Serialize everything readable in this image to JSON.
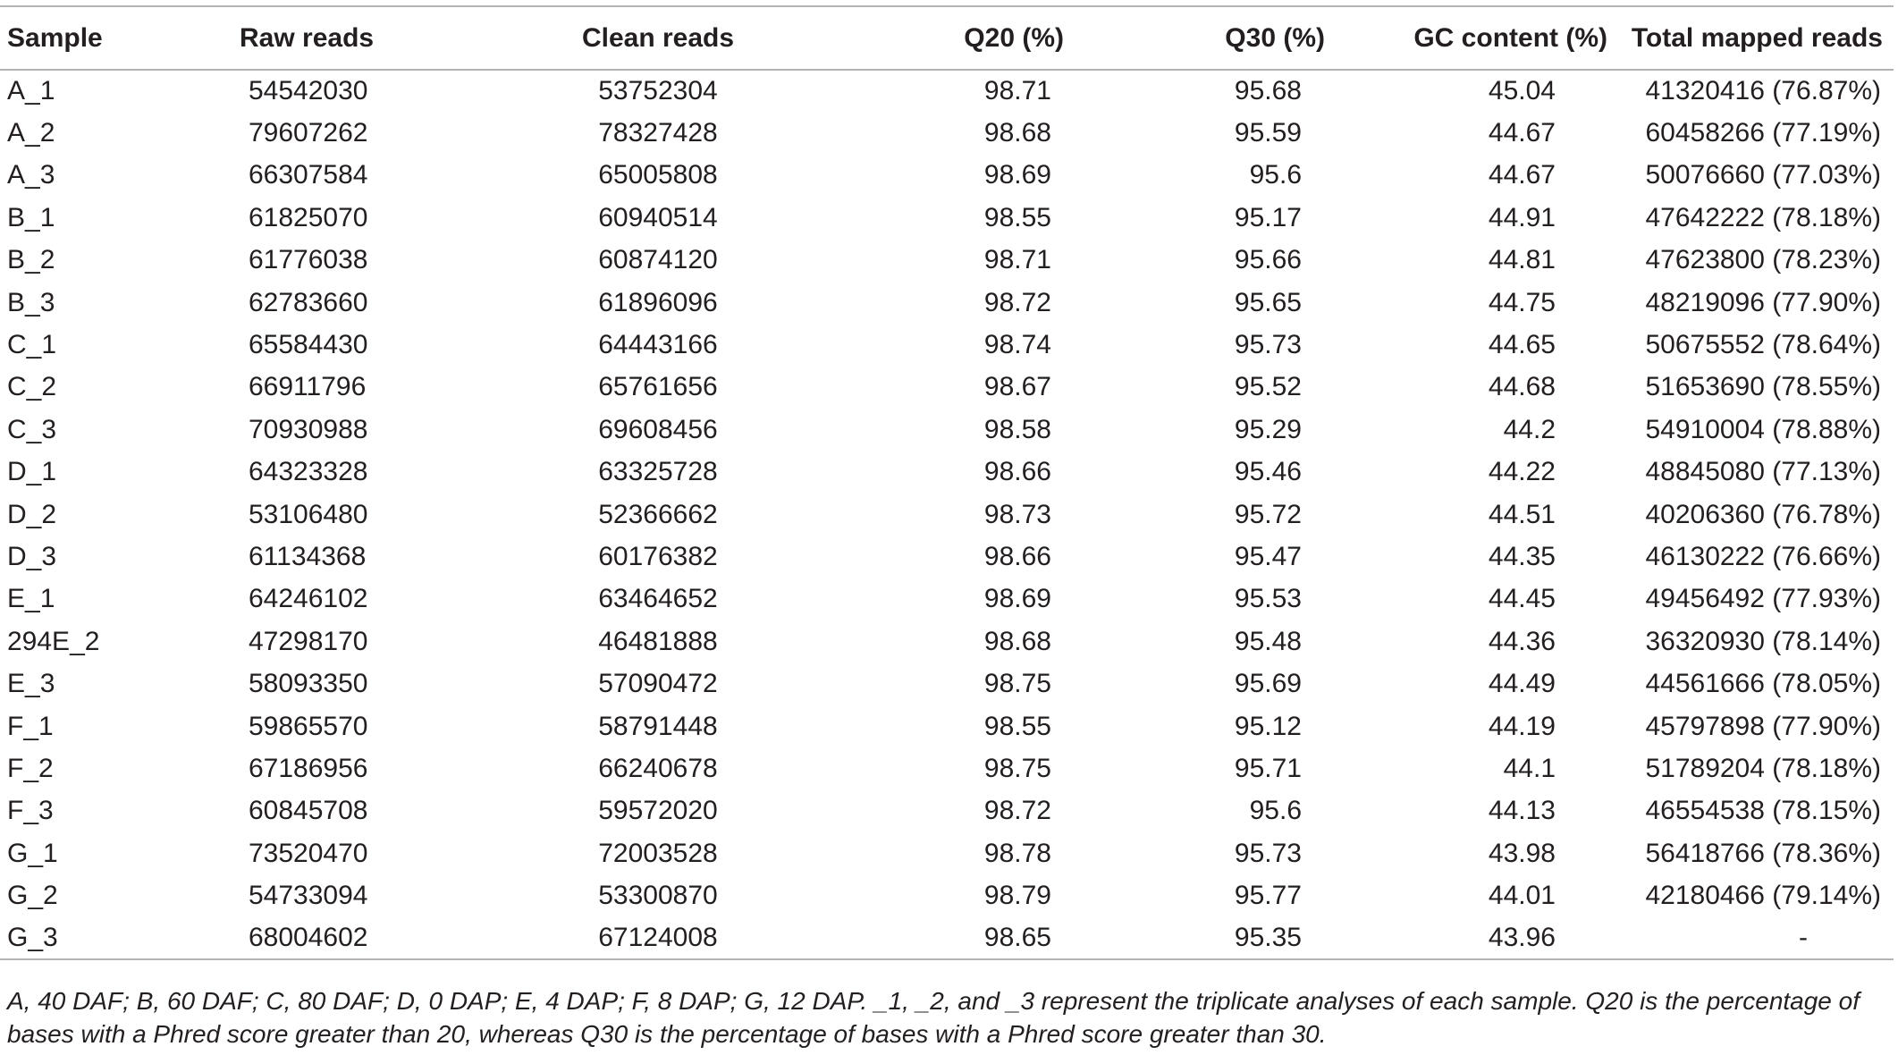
{
  "table": {
    "headers": [
      "Sample",
      "Raw reads",
      "Clean reads",
      "Q20 (%)",
      "Q30 (%)",
      "GC content (%)",
      "Total mapped reads"
    ],
    "rows": [
      [
        "A_1",
        "54542030",
        "53752304",
        "98.71",
        "95.68",
        "45.04",
        "41320416 (76.87%)"
      ],
      [
        "A_2",
        "79607262",
        "78327428",
        "98.68",
        "95.59",
        "44.67",
        "60458266 (77.19%)"
      ],
      [
        "A_3",
        "66307584",
        "65005808",
        "98.69",
        "95.6",
        "44.67",
        "50076660 (77.03%)"
      ],
      [
        "B_1",
        "61825070",
        "60940514",
        "98.55",
        "95.17",
        "44.91",
        "47642222 (78.18%)"
      ],
      [
        "B_2",
        "61776038",
        "60874120",
        "98.71",
        "95.66",
        "44.81",
        "47623800 (78.23%)"
      ],
      [
        "B_3",
        "62783660",
        "61896096",
        "98.72",
        "95.65",
        "44.75",
        "48219096 (77.90%)"
      ],
      [
        "C_1",
        "65584430",
        "64443166",
        "98.74",
        "95.73",
        "44.65",
        "50675552 (78.64%)"
      ],
      [
        "C_2",
        "66911796",
        "65761656",
        "98.67",
        "95.52",
        "44.68",
        "51653690 (78.55%)"
      ],
      [
        "C_3",
        "70930988",
        "69608456",
        "98.58",
        "95.29",
        "44.2",
        "54910004 (78.88%)"
      ],
      [
        "D_1",
        "64323328",
        "63325728",
        "98.66",
        "95.46",
        "44.22",
        "48845080 (77.13%)"
      ],
      [
        "D_2",
        "53106480",
        "52366662",
        "98.73",
        "95.72",
        "44.51",
        "40206360 (76.78%)"
      ],
      [
        "D_3",
        "61134368",
        "60176382",
        "98.66",
        "95.47",
        "44.35",
        "46130222 (76.66%)"
      ],
      [
        "E_1",
        "64246102",
        "63464652",
        "98.69",
        "95.53",
        "44.45",
        "49456492 (77.93%)"
      ],
      [
        "294E_2",
        "47298170",
        "46481888",
        "98.68",
        "95.48",
        "44.36",
        "36320930 (78.14%)"
      ],
      [
        "E_3",
        "58093350",
        "57090472",
        "98.75",
        "95.69",
        "44.49",
        "44561666 (78.05%)"
      ],
      [
        "F_1",
        "59865570",
        "58791448",
        "98.55",
        "95.12",
        "44.19",
        "45797898 (77.90%)"
      ],
      [
        "F_2",
        "67186956",
        "66240678",
        "98.75",
        "95.71",
        "44.1",
        "51789204 (78.18%)"
      ],
      [
        "F_3",
        "60845708",
        "59572020",
        "98.72",
        "95.6",
        "44.13",
        "46554538 (78.15%)"
      ],
      [
        "G_1",
        "73520470",
        "72003528",
        "98.78",
        "95.73",
        "43.98",
        "56418766 (78.36%)"
      ],
      [
        "G_2",
        "54733094",
        "53300870",
        "98.79",
        "95.77",
        "44.01",
        "42180466 (79.14%)"
      ],
      [
        "G_3",
        "68004602",
        "67124008",
        "98.65",
        "95.35",
        "43.96",
        "-"
      ]
    ]
  },
  "footnote": "A, 40 DAF; B, 60 DAF; C, 80 DAF; D, 0 DAP; E, 4 DAP; F, 8 DAP; G, 12 DAP. _1, _2, and _3 represent the triplicate analyses of each sample. Q20 is the percentage of bases with a Phred score greater than 20, whereas Q30 is the percentage of bases with a Phred score greater than 30."
}
